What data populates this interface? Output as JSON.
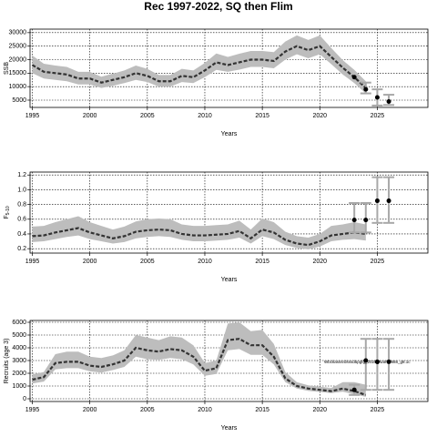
{
  "chart_data": [
    {
      "type": "line",
      "title": "Rec 1997-2022, SQ then Flim",
      "ylabel": "SSB",
      "xlabel": "Years",
      "xlim": [
        1994.8,
        2029.4
      ],
      "xticks": [
        1995,
        2000,
        2005,
        2010,
        2015,
        2020,
        2025
      ],
      "ylim": [
        2300,
        31300
      ],
      "yticks": [
        5000,
        10000,
        15000,
        20000,
        25000,
        30000
      ],
      "grid": true,
      "x": [
        1995,
        1996,
        1997,
        1998,
        1999,
        2000,
        2001,
        2002,
        2003,
        2004,
        2005,
        2006,
        2007,
        2008,
        2009,
        2010,
        2011,
        2012,
        2013,
        2014,
        2015,
        2016,
        2017,
        2018,
        2019,
        2020,
        2021,
        2022,
        2023,
        2024
      ],
      "values": [
        18000,
        15500,
        15000,
        14500,
        13000,
        13000,
        11500,
        12500,
        13500,
        15000,
        14000,
        12000,
        12000,
        14000,
        13500,
        16000,
        19000,
        18000,
        19000,
        20000,
        20000,
        19500,
        23000,
        25000,
        23500,
        25000,
        21000,
        17000,
        13500,
        9500
      ],
      "lower": [
        15000,
        13000,
        12500,
        12000,
        10800,
        10800,
        9500,
        10300,
        11300,
        12500,
        11700,
        10000,
        10000,
        11700,
        11300,
        13500,
        16200,
        15500,
        16300,
        17300,
        17300,
        16800,
        20000,
        22000,
        20500,
        22000,
        18300,
        14500,
        11300,
        7500
      ],
      "upper": [
        21500,
        18500,
        17800,
        17300,
        15500,
        15500,
        13700,
        14800,
        16000,
        17800,
        16600,
        14300,
        14300,
        16600,
        16000,
        18800,
        22300,
        21000,
        22200,
        23200,
        23200,
        22800,
        26700,
        29000,
        27300,
        29000,
        24300,
        19800,
        16200,
        12000
      ],
      "band_color": "#bdbdbd",
      "line_color": "#333333",
      "proj_x": [
        2023,
        2024,
        2025,
        2026
      ],
      "proj_values": [
        13500,
        9000,
        6000,
        4500
      ],
      "proj_lower": [
        null,
        7500,
        3000,
        3200
      ],
      "proj_upper": [
        null,
        11500,
        9000,
        7000
      ],
      "proj_color": "#a8a8a8"
    },
    {
      "type": "line",
      "ylabel": "F",
      "ylabel_sub": "5-10",
      "xlabel": "Years",
      "xlim": [
        1994.8,
        2029.4
      ],
      "xticks": [
        1995,
        2000,
        2005,
        2010,
        2015,
        2020,
        2025
      ],
      "ylim": [
        0.14,
        1.24
      ],
      "yticks": [
        0.2,
        0.4,
        0.6,
        0.8,
        {
          "value": 1,
          "label": "1.0"
        },
        1.2
      ],
      "grid": true,
      "x": [
        1995,
        1996,
        1997,
        1998,
        1999,
        2000,
        2001,
        2002,
        2003,
        2004,
        2005,
        2006,
        2007,
        2008,
        2009,
        2010,
        2011,
        2012,
        2013,
        2014,
        2015,
        2016,
        2017,
        2018,
        2019,
        2020,
        2021,
        2022,
        2023,
        2024
      ],
      "values": [
        0.37,
        0.38,
        0.42,
        0.45,
        0.48,
        0.42,
        0.38,
        0.34,
        0.37,
        0.43,
        0.45,
        0.46,
        0.45,
        0.4,
        0.38,
        0.38,
        0.39,
        0.4,
        0.44,
        0.34,
        0.46,
        0.42,
        0.32,
        0.27,
        0.25,
        0.3,
        0.38,
        0.4,
        0.42,
        0.4
      ],
      "lower": [
        0.29,
        0.3,
        0.33,
        0.36,
        0.38,
        0.33,
        0.3,
        0.27,
        0.29,
        0.34,
        0.36,
        0.37,
        0.36,
        0.32,
        0.3,
        0.3,
        0.31,
        0.32,
        0.35,
        0.27,
        0.37,
        0.33,
        0.25,
        0.21,
        0.19,
        0.23,
        0.3,
        0.32,
        0.33,
        0.31
      ],
      "upper": [
        0.5,
        0.51,
        0.56,
        0.6,
        0.64,
        0.56,
        0.51,
        0.46,
        0.5,
        0.57,
        0.6,
        0.61,
        0.6,
        0.53,
        0.51,
        0.51,
        0.52,
        0.53,
        0.58,
        0.46,
        0.61,
        0.56,
        0.43,
        0.37,
        0.35,
        0.4,
        0.51,
        0.53,
        0.56,
        0.53
      ],
      "band_color": "#bdbdbd",
      "line_color": "#333333",
      "proj_x": [
        2023,
        2024,
        2025,
        2026
      ],
      "proj_values": [
        0.59,
        0.59,
        0.85,
        0.85
      ],
      "proj_lower": [
        0.42,
        0.42,
        0.55,
        0.55
      ],
      "proj_upper": [
        0.82,
        0.82,
        1.17,
        1.17
      ],
      "proj_color": "#a8a8a8"
    },
    {
      "type": "line",
      "ylabel": "Recruits (age 3)",
      "xlabel": "Years",
      "xlim": [
        1994.8,
        2029.4
      ],
      "xticks": [
        1995,
        2000,
        2005,
        2010,
        2015,
        2020,
        2025
      ],
      "ylim": [
        -214,
        6143
      ],
      "yticks": [
        0,
        1000,
        2000,
        3000,
        4000,
        5000,
        6000
      ],
      "grid": true,
      "x": [
        1995,
        1996,
        1997,
        1998,
        1999,
        2000,
        2001,
        2002,
        2003,
        2004,
        2005,
        2006,
        2007,
        2008,
        2009,
        2010,
        2011,
        2012,
        2013,
        2014,
        2015,
        2016,
        2017,
        2018,
        2019,
        2020,
        2021,
        2022,
        2023,
        2024
      ],
      "values": [
        1500,
        1700,
        2800,
        2900,
        2900,
        2600,
        2500,
        2700,
        3000,
        4000,
        3800,
        3700,
        3900,
        3800,
        3300,
        2200,
        2400,
        4600,
        4700,
        4200,
        4200,
        3300,
        1600,
        1000,
        800,
        700,
        600,
        800,
        600,
        300
      ],
      "lower": [
        1200,
        1350,
        2300,
        2400,
        2400,
        2150,
        2050,
        2250,
        2500,
        3300,
        3100,
        3050,
        3200,
        3100,
        2700,
        1800,
        1950,
        3800,
        3900,
        3450,
        3450,
        2700,
        1300,
        800,
        620,
        540,
        450,
        550,
        350,
        150
      ],
      "upper": [
        1900,
        2100,
        3500,
        3700,
        3700,
        3300,
        3200,
        3400,
        3800,
        5000,
        4800,
        4600,
        4900,
        4800,
        4200,
        2800,
        3000,
        5900,
        6000,
        5300,
        5400,
        4300,
        2100,
        1300,
        1050,
        950,
        850,
        1300,
        1300,
        1100
      ],
      "band_color": "#bdbdbd",
      "line_color": "#333333",
      "proj_x": [
        2023,
        2024,
        2025,
        2026
      ],
      "proj_values": [
        700,
        3000,
        2900,
        2900
      ],
      "proj_lower": [
        300,
        700,
        700,
        700
      ],
      "proj_upper": [
        1100,
        4700,
        4700,
        4700
      ],
      "proj_color": "#a8a8a8",
      "annotation": "Wbckasssrdsssd5pgfg_2025_Natr18888_g8.1c"
    }
  ]
}
